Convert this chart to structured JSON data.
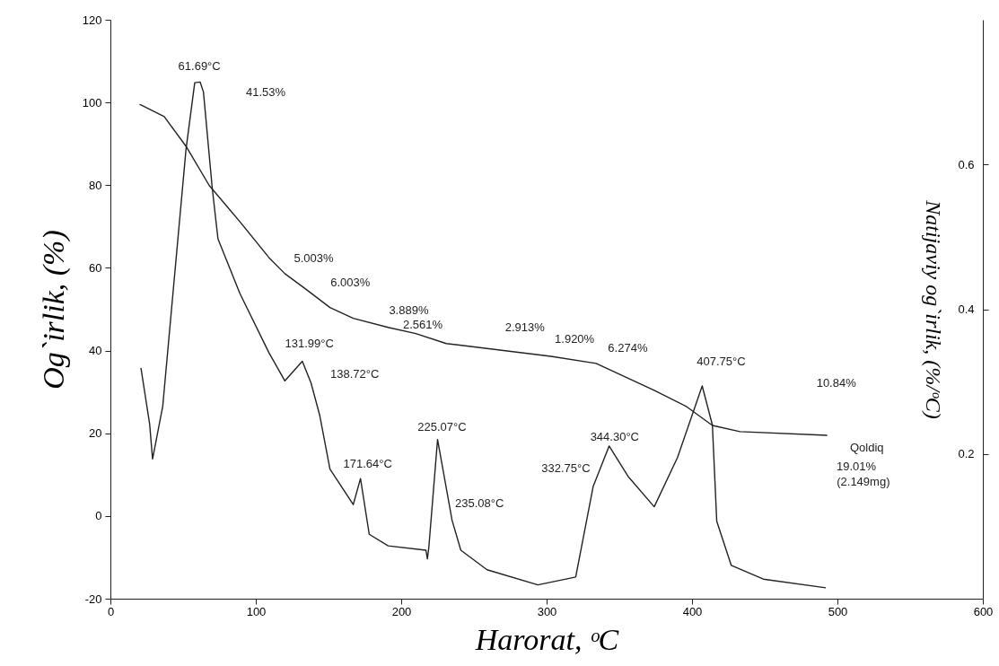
{
  "chart_data": {
    "type": "line",
    "xlabel": "Harorat, ᵒC",
    "ylabel": "Og`irlik, (%)",
    "y2label": "Natijaviy og`irlik, (%/ᵒC)",
    "xlim": [
      0,
      600
    ],
    "xticks": [
      0,
      100,
      200,
      300,
      400,
      500,
      600
    ],
    "ylim": [
      -20,
      120
    ],
    "yticks": [
      -20,
      0,
      20,
      40,
      60,
      80,
      100,
      120
    ],
    "y2lim": [
      0,
      0.8
    ],
    "y2ticks": [
      0.2,
      0.4,
      0.6
    ],
    "grid": false,
    "marker": "none",
    "line_style": "solid",
    "series": [
      {
        "color": "#222222",
        "x": [
          20,
          21,
          37,
          52,
          68,
          89,
          109,
          120,
          135,
          151,
          167,
          191,
          210,
          231,
          303,
          334,
          374,
          396,
          414,
          433,
          493
        ],
        "values": [
          99.5,
          99.4,
          96.6,
          89.4,
          79.9,
          71.2,
          62.5,
          58.6,
          54.7,
          50.4,
          47.8,
          45.6,
          44.1,
          41.7,
          38.6,
          36.9,
          30.4,
          26.5,
          21.9,
          20.4,
          19.5
        ]
      },
      {
        "color": "#222222",
        "axis": "y2",
        "x": [
          21,
          27,
          29,
          36,
          52,
          58,
          61.7,
          64,
          70,
          74,
          89,
          109,
          120,
          132,
          138,
          144,
          151,
          167,
          172,
          178,
          191,
          217,
          218,
          219,
          225,
          235,
          241,
          259,
          294,
          320,
          332,
          343,
          356,
          374,
          390,
          407,
          414,
          417,
          427,
          449,
          492
        ],
        "values": [
          0.319,
          0.241,
          0.193,
          0.266,
          0.621,
          0.713,
          0.714,
          0.7,
          0.568,
          0.497,
          0.422,
          0.34,
          0.301,
          0.328,
          0.298,
          0.253,
          0.179,
          0.13,
          0.166,
          0.089,
          0.073,
          0.067,
          0.055,
          0.071,
          0.22,
          0.108,
          0.067,
          0.04,
          0.019,
          0.03,
          0.155,
          0.211,
          0.169,
          0.127,
          0.195,
          0.294,
          0.24,
          0.107,
          0.046,
          0.027,
          0.015
        ]
      }
    ],
    "annotations": [
      "61.69°C",
      "41.53%",
      "5.003%",
      "6.003%",
      "3.889%",
      "2.561%",
      "2.913%",
      "1.920%",
      "6.274%",
      "10.84%",
      "407.75°C",
      "131.99°C",
      "138.72°C",
      "171.64°C",
      "225.07°C",
      "235.08°C",
      "332.75°C",
      "344.30°C",
      "Qoldiq",
      "19.01%",
      "(2.149mg)"
    ]
  }
}
